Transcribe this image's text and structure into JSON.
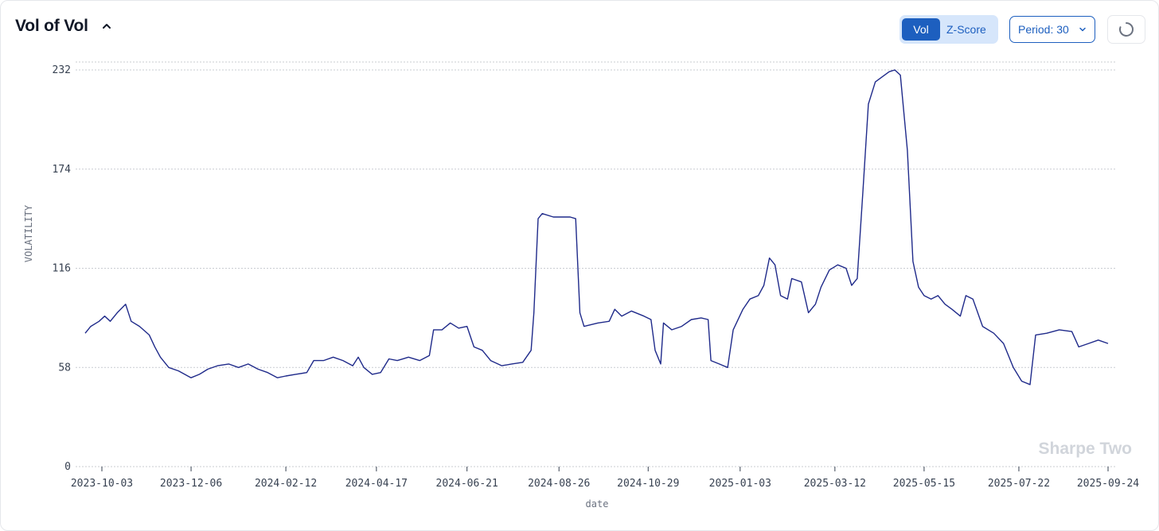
{
  "header": {
    "title": "Vol of Vol",
    "toggle": {
      "vol_label": "Vol",
      "zscore_label": "Z-Score",
      "active": "vol"
    },
    "period_label": "Period: 30"
  },
  "watermark": "Sharpe Two",
  "colors": {
    "line": "#1f2a8a",
    "accent": "#1d5fbf",
    "grid": "#c9ccd2"
  },
  "icons": {
    "collapse": "chevron-up-icon",
    "period": "chevron-down-icon",
    "refresh": "spinner-icon"
  },
  "chart_data": {
    "type": "line",
    "xlabel": "date",
    "ylabel": "VOLATILITY",
    "ylim": [
      0,
      232
    ],
    "yticks": [
      0,
      58,
      116,
      174,
      232
    ],
    "xticks": [
      "2023-10-03",
      "2023-12-06",
      "2024-02-12",
      "2024-04-17",
      "2024-06-21",
      "2024-08-26",
      "2024-10-29",
      "2025-01-03",
      "2025-03-12",
      "2025-05-15",
      "2025-07-22",
      "2025-09-24"
    ],
    "grid": true,
    "series": [
      {
        "name": "",
        "points": [
          [
            "2023-09-21",
            78
          ],
          [
            "2023-09-25",
            82
          ],
          [
            "2023-10-01",
            85
          ],
          [
            "2023-10-05",
            88
          ],
          [
            "2023-10-09",
            85
          ],
          [
            "2023-10-14",
            90
          ],
          [
            "2023-10-20",
            95
          ],
          [
            "2023-10-24",
            85
          ],
          [
            "2023-10-30",
            82
          ],
          [
            "2023-11-06",
            77
          ],
          [
            "2023-11-10",
            70
          ],
          [
            "2023-11-14",
            64
          ],
          [
            "2023-11-20",
            58
          ],
          [
            "2023-11-27",
            56
          ],
          [
            "2023-12-06",
            52
          ],
          [
            "2023-12-12",
            54
          ],
          [
            "2023-12-18",
            57
          ],
          [
            "2023-12-25",
            59
          ],
          [
            "2024-01-02",
            60
          ],
          [
            "2024-01-09",
            58
          ],
          [
            "2024-01-16",
            60
          ],
          [
            "2024-01-23",
            57
          ],
          [
            "2024-01-30",
            55
          ],
          [
            "2024-02-06",
            52
          ],
          [
            "2024-02-12",
            53
          ],
          [
            "2024-02-19",
            54
          ],
          [
            "2024-02-27",
            55
          ],
          [
            "2024-03-03",
            62
          ],
          [
            "2024-03-10",
            62
          ],
          [
            "2024-03-17",
            64
          ],
          [
            "2024-03-24",
            62
          ],
          [
            "2024-03-31",
            59
          ],
          [
            "2024-04-04",
            64
          ],
          [
            "2024-04-08",
            58
          ],
          [
            "2024-04-14",
            54
          ],
          [
            "2024-04-20",
            55
          ],
          [
            "2024-04-26",
            63
          ],
          [
            "2024-05-02",
            62
          ],
          [
            "2024-05-10",
            64
          ],
          [
            "2024-05-18",
            62
          ],
          [
            "2024-05-25",
            65
          ],
          [
            "2024-05-28",
            80
          ],
          [
            "2024-06-03",
            80
          ],
          [
            "2024-06-09",
            84
          ],
          [
            "2024-06-15",
            81
          ],
          [
            "2024-06-21",
            82
          ],
          [
            "2024-06-26",
            70
          ],
          [
            "2024-07-02",
            68
          ],
          [
            "2024-07-08",
            62
          ],
          [
            "2024-07-16",
            59
          ],
          [
            "2024-07-23",
            60
          ],
          [
            "2024-07-31",
            61
          ],
          [
            "2024-08-06",
            68
          ],
          [
            "2024-08-08",
            90
          ],
          [
            "2024-08-11",
            145
          ],
          [
            "2024-08-14",
            148
          ],
          [
            "2024-08-22",
            146
          ],
          [
            "2024-09-03",
            146
          ],
          [
            "2024-09-07",
            145
          ],
          [
            "2024-09-10",
            90
          ],
          [
            "2024-09-13",
            82
          ],
          [
            "2024-09-23",
            84
          ],
          [
            "2024-10-01",
            85
          ],
          [
            "2024-10-05",
            92
          ],
          [
            "2024-10-10",
            88
          ],
          [
            "2024-10-17",
            91
          ],
          [
            "2024-10-26",
            88
          ],
          [
            "2024-10-31",
            86
          ],
          [
            "2024-11-03",
            68
          ],
          [
            "2024-11-07",
            60
          ],
          [
            "2024-11-09",
            84
          ],
          [
            "2024-11-15",
            80
          ],
          [
            "2024-11-22",
            82
          ],
          [
            "2024-11-29",
            86
          ],
          [
            "2024-12-06",
            87
          ],
          [
            "2024-12-11",
            86
          ],
          [
            "2024-12-13",
            62
          ],
          [
            "2024-12-19",
            60
          ],
          [
            "2024-12-25",
            58
          ],
          [
            "2024-12-29",
            80
          ],
          [
            "2025-01-05",
            92
          ],
          [
            "2025-01-10",
            98
          ],
          [
            "2025-01-16",
            100
          ],
          [
            "2025-01-20",
            106
          ],
          [
            "2025-01-24",
            122
          ],
          [
            "2025-01-28",
            118
          ],
          [
            "2025-02-01",
            100
          ],
          [
            "2025-02-06",
            98
          ],
          [
            "2025-02-09",
            110
          ],
          [
            "2025-02-16",
            108
          ],
          [
            "2025-02-21",
            90
          ],
          [
            "2025-02-26",
            95
          ],
          [
            "2025-03-02",
            105
          ],
          [
            "2025-03-08",
            115
          ],
          [
            "2025-03-14",
            118
          ],
          [
            "2025-03-20",
            116
          ],
          [
            "2025-03-24",
            106
          ],
          [
            "2025-03-28",
            110
          ],
          [
            "2025-04-01",
            160
          ],
          [
            "2025-04-05",
            212
          ],
          [
            "2025-04-10",
            225
          ],
          [
            "2025-04-15",
            228
          ],
          [
            "2025-04-20",
            231
          ],
          [
            "2025-04-24",
            232
          ],
          [
            "2025-04-28",
            229
          ],
          [
            "2025-05-03",
            185
          ],
          [
            "2025-05-07",
            120
          ],
          [
            "2025-05-11",
            105
          ],
          [
            "2025-05-15",
            100
          ],
          [
            "2025-05-20",
            98
          ],
          [
            "2025-05-25",
            100
          ],
          [
            "2025-05-30",
            95
          ],
          [
            "2025-06-04",
            92
          ],
          [
            "2025-06-10",
            88
          ],
          [
            "2025-06-14",
            100
          ],
          [
            "2025-06-19",
            98
          ],
          [
            "2025-06-26",
            82
          ],
          [
            "2025-07-04",
            78
          ],
          [
            "2025-07-11",
            72
          ],
          [
            "2025-07-18",
            58
          ],
          [
            "2025-07-24",
            50
          ],
          [
            "2025-07-30",
            48
          ],
          [
            "2025-08-03",
            77
          ],
          [
            "2025-08-11",
            78
          ],
          [
            "2025-08-20",
            80
          ],
          [
            "2025-08-29",
            79
          ],
          [
            "2025-09-03",
            70
          ],
          [
            "2025-09-10",
            72
          ],
          [
            "2025-09-17",
            74
          ],
          [
            "2025-09-24",
            72
          ]
        ]
      }
    ]
  }
}
